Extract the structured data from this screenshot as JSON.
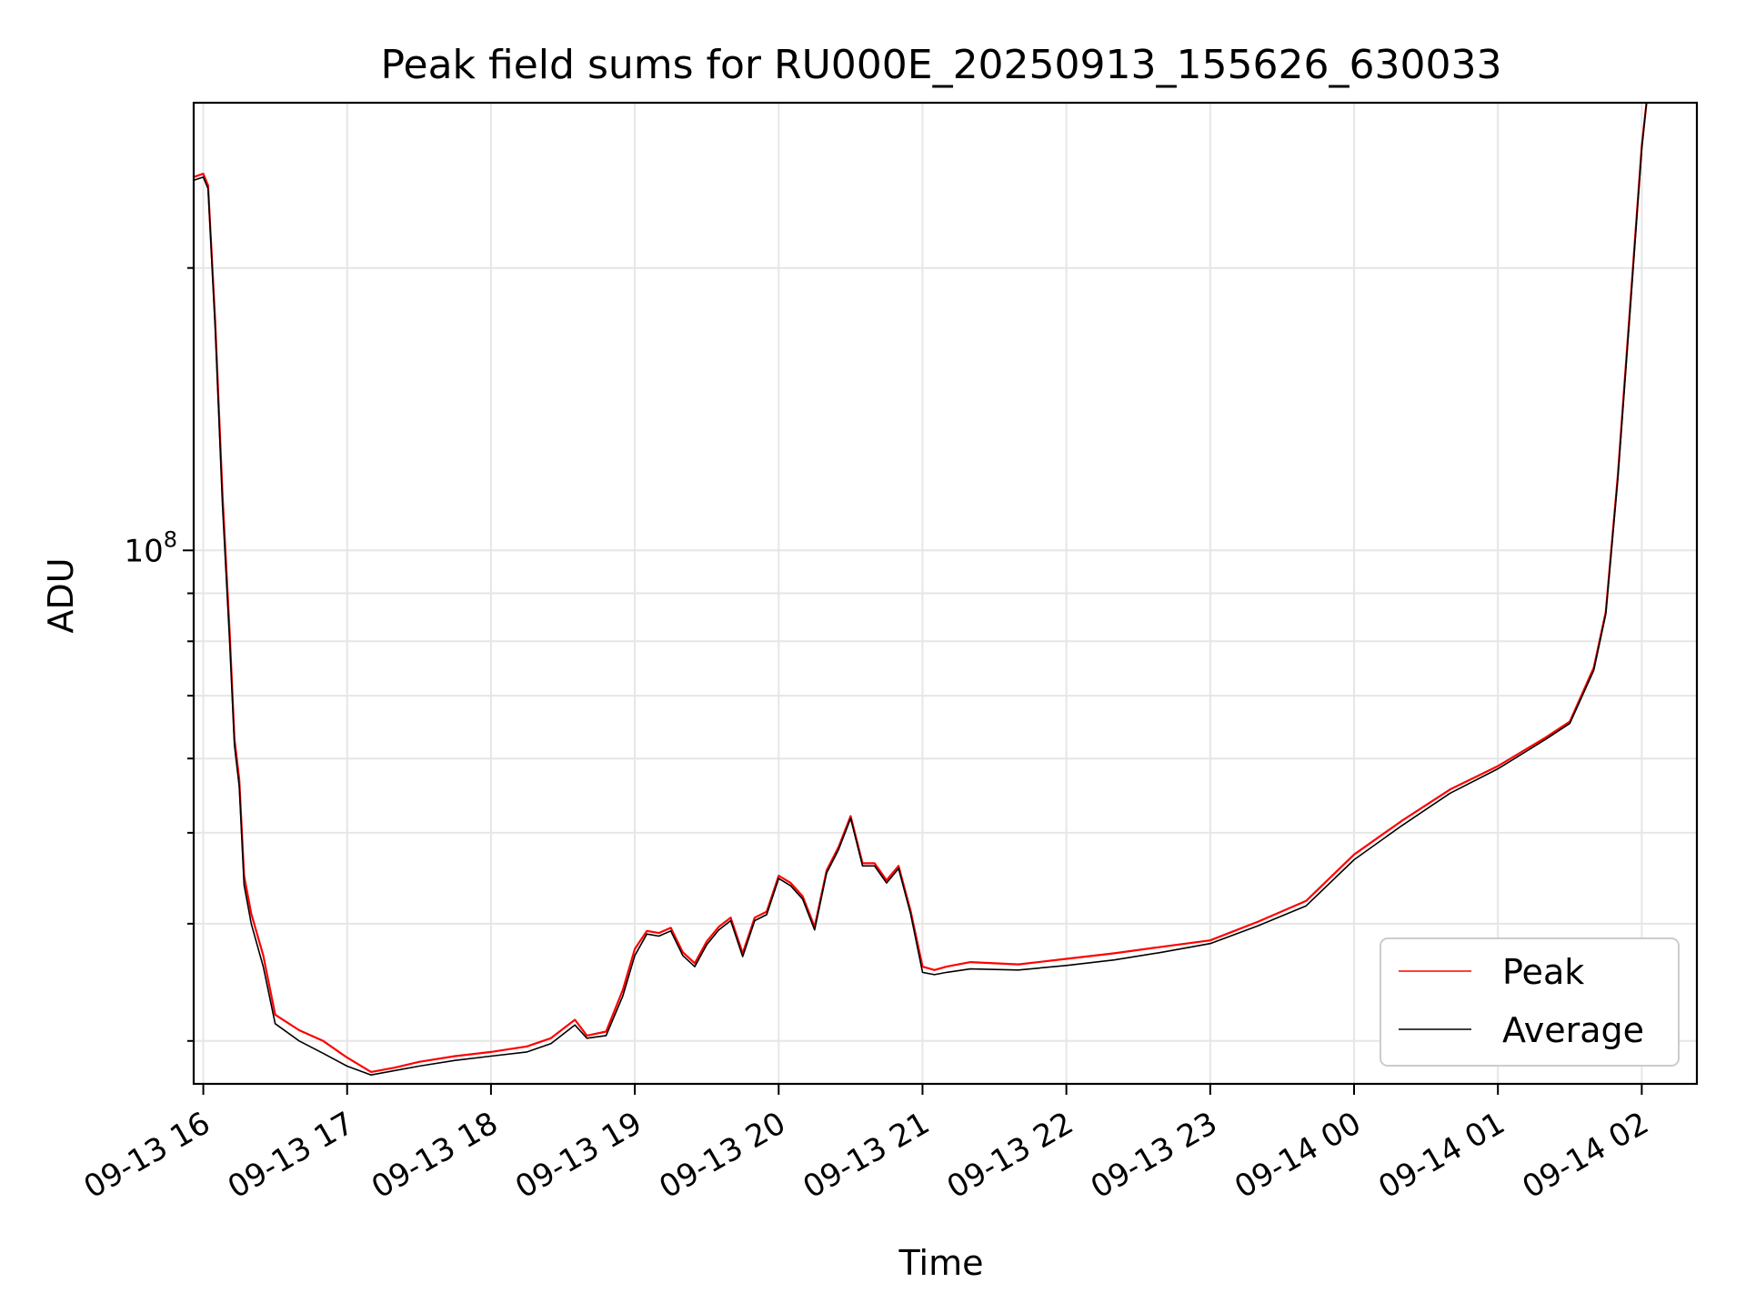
{
  "chart_data": {
    "type": "line",
    "title": "Peak field sums for RU000E_20250913_155626_630033",
    "xlabel": "Time",
    "ylabel": "ADU",
    "y_scale": "log",
    "ylim": [
      27000000,
      300000000
    ],
    "y_tick_labels": [
      {
        "value": 100000000,
        "label": "10^8"
      }
    ],
    "x_tick_labels": [
      "09-13 16",
      "09-13 17",
      "09-13 18",
      "09-13 19",
      "09-13 20",
      "09-13 21",
      "09-13 22",
      "09-13 23",
      "09-14 00",
      "09-14 01",
      "09-14 02"
    ],
    "x_tick_values": [
      "2025-09-13 16:00",
      "2025-09-13 17:00",
      "2025-09-13 18:00",
      "2025-09-13 19:00",
      "2025-09-13 20:00",
      "2025-09-13 21:00",
      "2025-09-13 22:00",
      "2025-09-13 23:00",
      "2025-09-14 00:00",
      "2025-09-14 01:00",
      "2025-09-14 02:00"
    ],
    "xlim": [
      "2025-09-13 15:56",
      "2025-09-14 02:23"
    ],
    "grid": true,
    "legend_position": "lower-right",
    "series": [
      {
        "name": "Peak",
        "color": "#ff0000",
        "points": [
          [
            "2025-09-13 15:56",
            250000000
          ],
          [
            "2025-09-13 16:00",
            252000000
          ],
          [
            "2025-09-13 16:02",
            245000000
          ],
          [
            "2025-09-13 16:05",
            175000000
          ],
          [
            "2025-09-13 16:08",
            115000000
          ],
          [
            "2025-09-13 16:11",
            82000000
          ],
          [
            "2025-09-13 16:13",
            63000000
          ],
          [
            "2025-09-13 16:15",
            57000000
          ],
          [
            "2025-09-13 16:17",
            45000000
          ],
          [
            "2025-09-13 16:20",
            41000000
          ],
          [
            "2025-09-13 16:25",
            37000000
          ],
          [
            "2025-09-13 16:30",
            32000000
          ],
          [
            "2025-09-13 16:40",
            30800000
          ],
          [
            "2025-09-13 16:50",
            30000000
          ],
          [
            "2025-09-13 17:00",
            28800000
          ],
          [
            "2025-09-13 17:10",
            27800000
          ],
          [
            "2025-09-13 17:20",
            28100000
          ],
          [
            "2025-09-13 17:30",
            28500000
          ],
          [
            "2025-09-13 17:45",
            28900000
          ],
          [
            "2025-09-13 18:00",
            29200000
          ],
          [
            "2025-09-13 18:15",
            29600000
          ],
          [
            "2025-09-13 18:25",
            30200000
          ],
          [
            "2025-09-13 18:35",
            31600000
          ],
          [
            "2025-09-13 18:40",
            30400000
          ],
          [
            "2025-09-13 18:48",
            30700000
          ],
          [
            "2025-09-13 18:55",
            34000000
          ],
          [
            "2025-09-13 19:00",
            37600000
          ],
          [
            "2025-09-13 19:05",
            39300000
          ],
          [
            "2025-09-13 19:10",
            39100000
          ],
          [
            "2025-09-13 19:15",
            39600000
          ],
          [
            "2025-09-13 19:20",
            37300000
          ],
          [
            "2025-09-13 19:25",
            36300000
          ],
          [
            "2025-09-13 19:30",
            38300000
          ],
          [
            "2025-09-13 19:35",
            39700000
          ],
          [
            "2025-09-13 19:40",
            40600000
          ],
          [
            "2025-09-13 19:45",
            37200000
          ],
          [
            "2025-09-13 19:50",
            40600000
          ],
          [
            "2025-09-13 19:55",
            41200000
          ],
          [
            "2025-09-13 20:00",
            45000000
          ],
          [
            "2025-09-13 20:05",
            44200000
          ],
          [
            "2025-09-13 20:10",
            42800000
          ],
          [
            "2025-09-13 20:15",
            39700000
          ],
          [
            "2025-09-13 20:20",
            45600000
          ],
          [
            "2025-09-13 20:25",
            48300000
          ],
          [
            "2025-09-13 20:30",
            52100000
          ],
          [
            "2025-09-13 20:35",
            46400000
          ],
          [
            "2025-09-13 20:40",
            46400000
          ],
          [
            "2025-09-13 20:45",
            44500000
          ],
          [
            "2025-09-13 20:50",
            46100000
          ],
          [
            "2025-09-13 20:55",
            41300000
          ],
          [
            "2025-09-13 21:00",
            36000000
          ],
          [
            "2025-09-13 21:05",
            35700000
          ],
          [
            "2025-09-13 21:10",
            36000000
          ],
          [
            "2025-09-13 21:20",
            36400000
          ],
          [
            "2025-09-13 21:40",
            36200000
          ],
          [
            "2025-09-13 22:00",
            36700000
          ],
          [
            "2025-09-13 22:20",
            37200000
          ],
          [
            "2025-09-13 22:40",
            37800000
          ],
          [
            "2025-09-13 23:00",
            38400000
          ],
          [
            "2025-09-13 23:20",
            40200000
          ],
          [
            "2025-09-13 23:40",
            42300000
          ],
          [
            "2025-09-14 00:00",
            47400000
          ],
          [
            "2025-09-14 00:20",
            51500000
          ],
          [
            "2025-09-14 00:40",
            55600000
          ],
          [
            "2025-09-14 01:00",
            58900000
          ],
          [
            "2025-09-14 01:20",
            63200000
          ],
          [
            "2025-09-14 01:30",
            65700000
          ],
          [
            "2025-09-14 01:40",
            75000000
          ],
          [
            "2025-09-14 01:45",
            86000000
          ],
          [
            "2025-09-14 01:50",
            120000000
          ],
          [
            "2025-09-14 01:55",
            180000000
          ],
          [
            "2025-09-14 02:00",
            270000000
          ],
          [
            "2025-09-14 02:02",
            300000000
          ]
        ]
      },
      {
        "name": "Average",
        "color": "#000000",
        "points": [
          [
            "2025-09-13 15:56",
            248000000
          ],
          [
            "2025-09-13 16:00",
            250000000
          ],
          [
            "2025-09-13 16:02",
            243000000
          ],
          [
            "2025-09-13 16:05",
            172000000
          ],
          [
            "2025-09-13 16:08",
            112000000
          ],
          [
            "2025-09-13 16:11",
            80000000
          ],
          [
            "2025-09-13 16:13",
            62000000
          ],
          [
            "2025-09-13 16:15",
            56000000
          ],
          [
            "2025-09-13 16:17",
            44000000
          ],
          [
            "2025-09-13 16:20",
            40000000
          ],
          [
            "2025-09-13 16:25",
            36000000
          ],
          [
            "2025-09-13 16:30",
            31300000
          ],
          [
            "2025-09-13 16:40",
            30000000
          ],
          [
            "2025-09-13 16:50",
            29100000
          ],
          [
            "2025-09-13 17:00",
            28200000
          ],
          [
            "2025-09-13 17:10",
            27600000
          ],
          [
            "2025-09-13 17:20",
            27900000
          ],
          [
            "2025-09-13 17:30",
            28200000
          ],
          [
            "2025-09-13 17:45",
            28600000
          ],
          [
            "2025-09-13 18:00",
            28900000
          ],
          [
            "2025-09-13 18:15",
            29200000
          ],
          [
            "2025-09-13 18:25",
            29800000
          ],
          [
            "2025-09-13 18:35",
            31200000
          ],
          [
            "2025-09-13 18:40",
            30200000
          ],
          [
            "2025-09-13 18:48",
            30400000
          ],
          [
            "2025-09-13 18:55",
            33500000
          ],
          [
            "2025-09-13 19:00",
            37000000
          ],
          [
            "2025-09-13 19:05",
            39000000
          ],
          [
            "2025-09-13 19:10",
            38800000
          ],
          [
            "2025-09-13 19:15",
            39300000
          ],
          [
            "2025-09-13 19:20",
            37000000
          ],
          [
            "2025-09-13 19:25",
            36000000
          ],
          [
            "2025-09-13 19:30",
            38000000
          ],
          [
            "2025-09-13 19:35",
            39400000
          ],
          [
            "2025-09-13 19:40",
            40300000
          ],
          [
            "2025-09-13 19:45",
            36900000
          ],
          [
            "2025-09-13 19:50",
            40300000
          ],
          [
            "2025-09-13 19:55",
            40900000
          ],
          [
            "2025-09-13 20:00",
            44700000
          ],
          [
            "2025-09-13 20:05",
            43900000
          ],
          [
            "2025-09-13 20:10",
            42500000
          ],
          [
            "2025-09-13 20:15",
            39400000
          ],
          [
            "2025-09-13 20:20",
            45300000
          ],
          [
            "2025-09-13 20:25",
            48000000
          ],
          [
            "2025-09-13 20:30",
            51800000
          ],
          [
            "2025-09-13 20:35",
            46100000
          ],
          [
            "2025-09-13 20:40",
            46100000
          ],
          [
            "2025-09-13 20:45",
            44200000
          ],
          [
            "2025-09-13 20:50",
            45800000
          ],
          [
            "2025-09-13 20:55",
            41000000
          ],
          [
            "2025-09-13 21:00",
            35500000
          ],
          [
            "2025-09-13 21:05",
            35300000
          ],
          [
            "2025-09-13 21:10",
            35500000
          ],
          [
            "2025-09-13 21:20",
            35800000
          ],
          [
            "2025-09-13 21:40",
            35700000
          ],
          [
            "2025-09-13 22:00",
            36100000
          ],
          [
            "2025-09-13 22:20",
            36600000
          ],
          [
            "2025-09-13 22:40",
            37300000
          ],
          [
            "2025-09-13 23:00",
            38100000
          ],
          [
            "2025-09-13 23:20",
            39800000
          ],
          [
            "2025-09-13 23:40",
            41800000
          ],
          [
            "2025-09-14 00:00",
            46800000
          ],
          [
            "2025-09-14 00:20",
            50900000
          ],
          [
            "2025-09-14 00:40",
            55100000
          ],
          [
            "2025-09-14 01:00",
            58500000
          ],
          [
            "2025-09-14 01:20",
            62900000
          ],
          [
            "2025-09-14 01:30",
            65400000
          ],
          [
            "2025-09-14 01:40",
            74500000
          ],
          [
            "2025-09-14 01:45",
            85500000
          ],
          [
            "2025-09-14 01:50",
            119000000
          ],
          [
            "2025-09-14 01:55",
            178000000
          ],
          [
            "2025-09-14 02:00",
            268000000
          ],
          [
            "2025-09-14 02:02",
            300000000
          ]
        ]
      }
    ]
  }
}
